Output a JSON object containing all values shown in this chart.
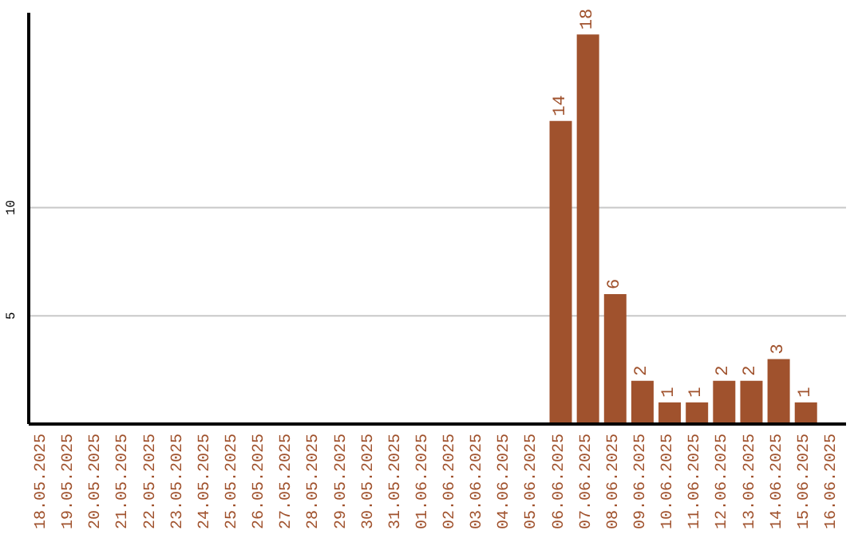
{
  "chart_data": {
    "type": "bar",
    "categories": [
      "18.05.2025",
      "19.05.2025",
      "20.05.2025",
      "21.05.2025",
      "22.05.2025",
      "23.05.2025",
      "24.05.2025",
      "25.05.2025",
      "26.05.2025",
      "27.05.2025",
      "28.05.2025",
      "29.05.2025",
      "30.05.2025",
      "31.05.2025",
      "01.06.2025",
      "02.06.2025",
      "03.06.2025",
      "04.06.2025",
      "05.06.2025",
      "06.06.2025",
      "07.06.2025",
      "08.06.2025",
      "09.06.2025",
      "10.06.2025",
      "11.06.2025",
      "12.06.2025",
      "13.06.2025",
      "14.06.2025",
      "15.06.2025",
      "16.06.2025"
    ],
    "values": [
      0,
      0,
      0,
      0,
      0,
      0,
      0,
      0,
      0,
      0,
      0,
      0,
      0,
      0,
      0,
      0,
      0,
      0,
      0,
      14,
      18,
      6,
      2,
      1,
      1,
      2,
      2,
      3,
      1,
      0
    ],
    "value_labels": [
      null,
      null,
      null,
      null,
      null,
      null,
      null,
      null,
      null,
      null,
      null,
      null,
      null,
      null,
      null,
      null,
      null,
      null,
      null,
      "14",
      "18",
      "6",
      "2",
      "1",
      "1",
      "2",
      "2",
      "3",
      "1",
      null
    ],
    "color": "#a0522d",
    "ylim": [
      0,
      19
    ],
    "yticks": [
      5,
      10
    ],
    "grid": "y"
  }
}
